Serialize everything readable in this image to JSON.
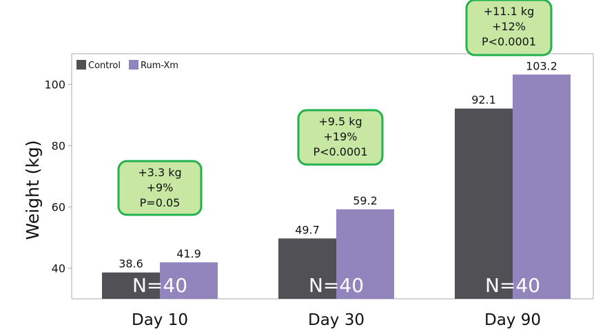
{
  "chart_data": {
    "type": "bar",
    "categories": [
      "Day 10",
      "Day 30",
      "Day 90"
    ],
    "series": [
      {
        "name": "Control",
        "color": "#505055",
        "values": [
          38.6,
          49.7,
          92.1
        ]
      },
      {
        "name": "Rum-Xm",
        "color": "#9284bd",
        "values": [
          41.9,
          59.2,
          103.2
        ]
      }
    ],
    "ylabel": "Weight (kg)",
    "xlabel": "",
    "ylim": [
      30,
      110
    ],
    "yticks": [
      40,
      60,
      80,
      100
    ],
    "grid": false,
    "legend_position": "top-left",
    "n_labels": [
      "N=40",
      "N=40",
      "N=40"
    ],
    "annotations": [
      {
        "lines": [
          "+3.3 kg",
          "+9%",
          "P=0.05"
        ]
      },
      {
        "lines": [
          "+9.5 kg",
          "+19%",
          "P<0.0001"
        ]
      },
      {
        "lines": [
          "+11.1 kg",
          "+12%",
          "P<0.0001"
        ]
      }
    ],
    "annotation_fill": "#c7e7a3",
    "annotation_border": "#22b14c"
  }
}
